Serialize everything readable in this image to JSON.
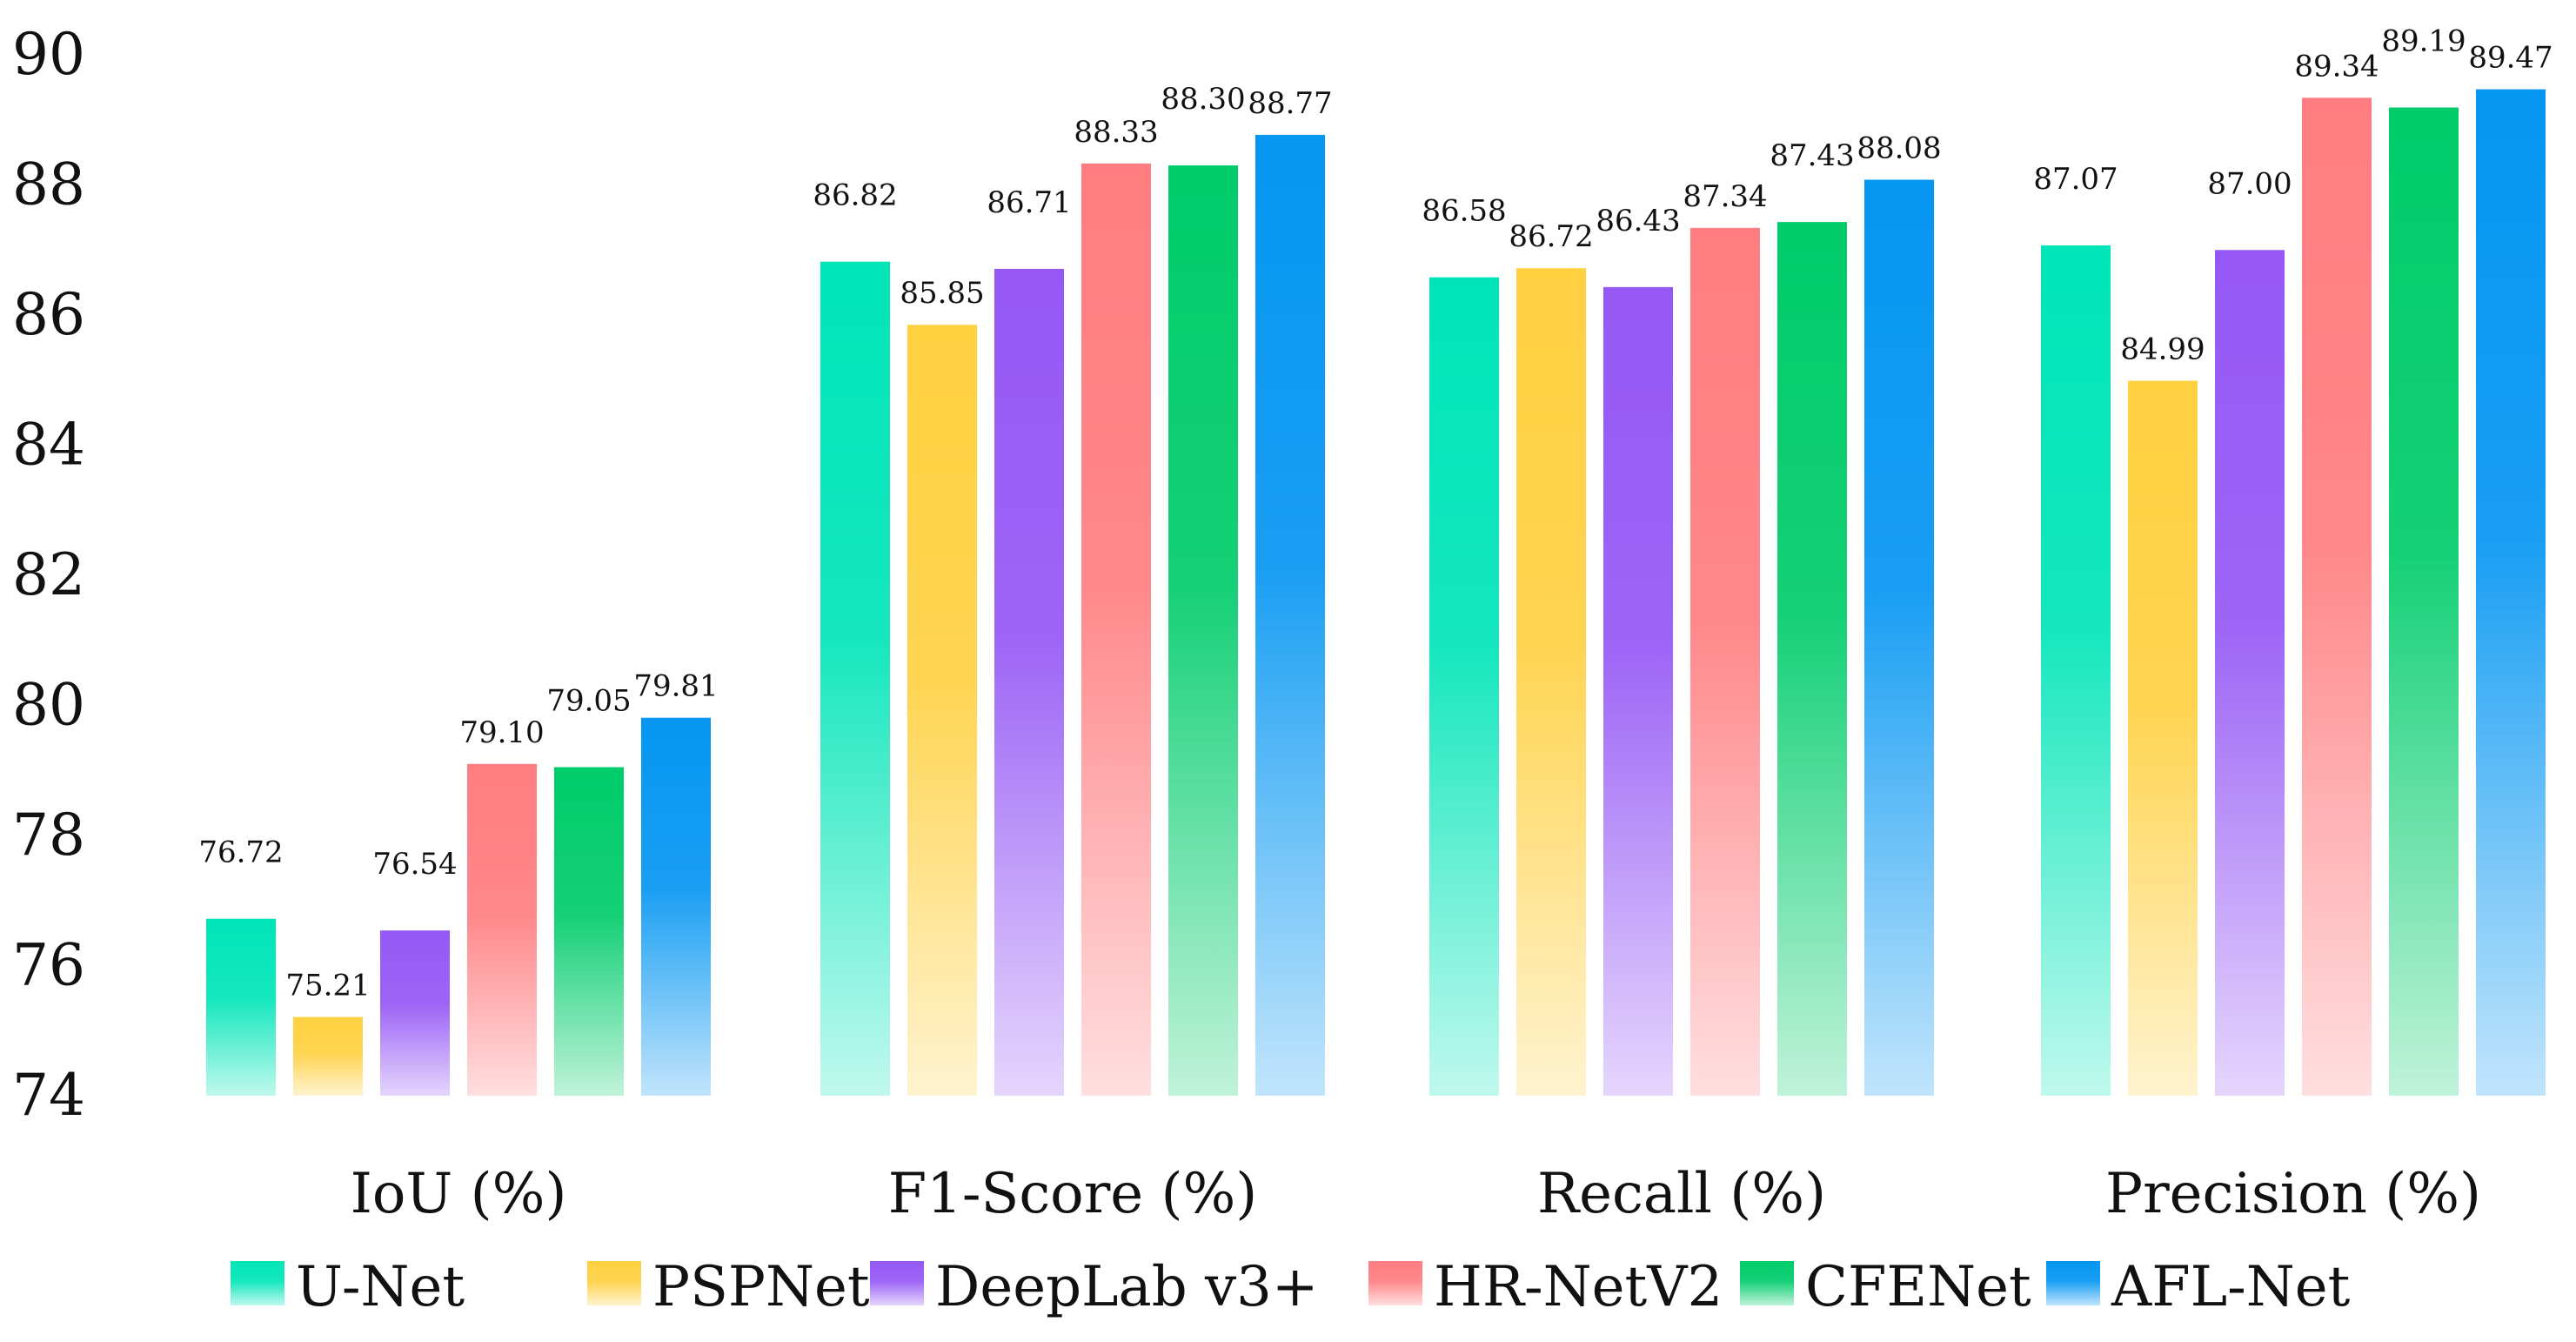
{
  "chart_data": {
    "type": "bar",
    "title": "",
    "xlabel": "",
    "ylabel": "",
    "ylim": [
      74,
      90
    ],
    "yticks": [
      "74",
      "76",
      "78",
      "80",
      "82",
      "84",
      "86",
      "88",
      "90"
    ],
    "grid": false,
    "legend_position": "bottom",
    "categories": [
      "IoU (%)",
      "F1-Score (%)",
      "Recall (%)",
      "Precision (%)"
    ],
    "series": [
      {
        "name": "U-Net",
        "color": "#00E5B8",
        "values": [
          76.72,
          86.82,
          86.58,
          87.07
        ],
        "labels": [
          "76.72",
          "86.82",
          "86.58",
          "87.07"
        ]
      },
      {
        "name": "PSPNet",
        "color": "#FFD040",
        "values": [
          75.21,
          85.85,
          86.72,
          84.99
        ],
        "labels": [
          "75.21",
          "85.85",
          "86.72",
          "84.99"
        ]
      },
      {
        "name": "DeepLab v3+",
        "color": "#9558F5",
        "values": [
          76.54,
          86.71,
          86.43,
          87.0
        ],
        "labels": [
          "76.54",
          "86.71",
          "86.43",
          "87.00"
        ]
      },
      {
        "name": "HR-NetV2",
        "color": "#FF7D80",
        "values": [
          79.1,
          88.33,
          87.34,
          89.34
        ],
        "labels": [
          "79.10",
          "88.33",
          "87.34",
          "89.34"
        ]
      },
      {
        "name": "CFENet",
        "color": "#00CC6A",
        "values": [
          79.05,
          88.3,
          87.43,
          89.19
        ],
        "labels": [
          "79.05",
          "88.30",
          "87.43",
          "89.19"
        ]
      },
      {
        "name": "AFL-Net",
        "color": "#0596F2",
        "values": [
          79.81,
          88.77,
          88.08,
          89.47
        ],
        "labels": [
          "79.81",
          "88.77",
          "88.08",
          "89.47"
        ]
      }
    ]
  }
}
